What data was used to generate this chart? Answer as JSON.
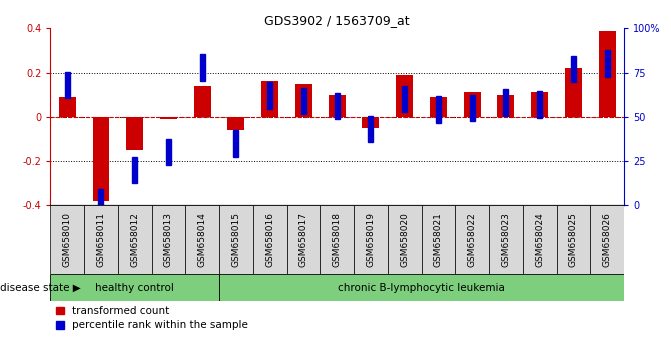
{
  "title": "GDS3902 / 1563709_at",
  "samples": [
    "GSM658010",
    "GSM658011",
    "GSM658012",
    "GSM658013",
    "GSM658014",
    "GSM658015",
    "GSM658016",
    "GSM658017",
    "GSM658018",
    "GSM658019",
    "GSM658020",
    "GSM658021",
    "GSM658022",
    "GSM658023",
    "GSM658024",
    "GSM658025",
    "GSM658026"
  ],
  "transformed_count": [
    0.09,
    -0.38,
    -0.15,
    -0.01,
    0.14,
    -0.06,
    0.16,
    0.15,
    0.1,
    -0.05,
    0.19,
    0.09,
    0.11,
    0.1,
    0.11,
    0.22,
    0.39
  ],
  "percentile_rank": [
    68,
    2,
    20,
    30,
    78,
    35,
    62,
    59,
    56,
    43,
    60,
    54,
    55,
    58,
    57,
    77,
    80
  ],
  "bar_color_red": "#cc0000",
  "bar_color_blue": "#0000cc",
  "ylim_left": [
    -0.4,
    0.4
  ],
  "ylim_right": [
    0,
    100
  ],
  "yticks_left": [
    -0.4,
    -0.2,
    0.0,
    0.2,
    0.4
  ],
  "ytick_labels_left": [
    "-0.4",
    "-0.2",
    "0",
    "0.2",
    "0.4"
  ],
  "yticks_right": [
    0,
    25,
    50,
    75,
    100
  ],
  "ytick_labels_right": [
    "0",
    "25",
    "50",
    "75",
    "100%"
  ],
  "hlines_dotted": [
    0.2,
    -0.2
  ],
  "healthy_control_count": 5,
  "group_healthy_label": "healthy control",
  "group_leukemia_label": "chronic B-lymphocytic leukemia",
  "group_color": "#7dce7d",
  "disease_state_label": "disease state",
  "legend_red_label": "transformed count",
  "legend_blue_label": "percentile rank within the sample",
  "tick_label_fontsize": 6.5,
  "red_bar_width": 0.5,
  "blue_square_size": 0.12,
  "blue_bar_width": 0.15
}
